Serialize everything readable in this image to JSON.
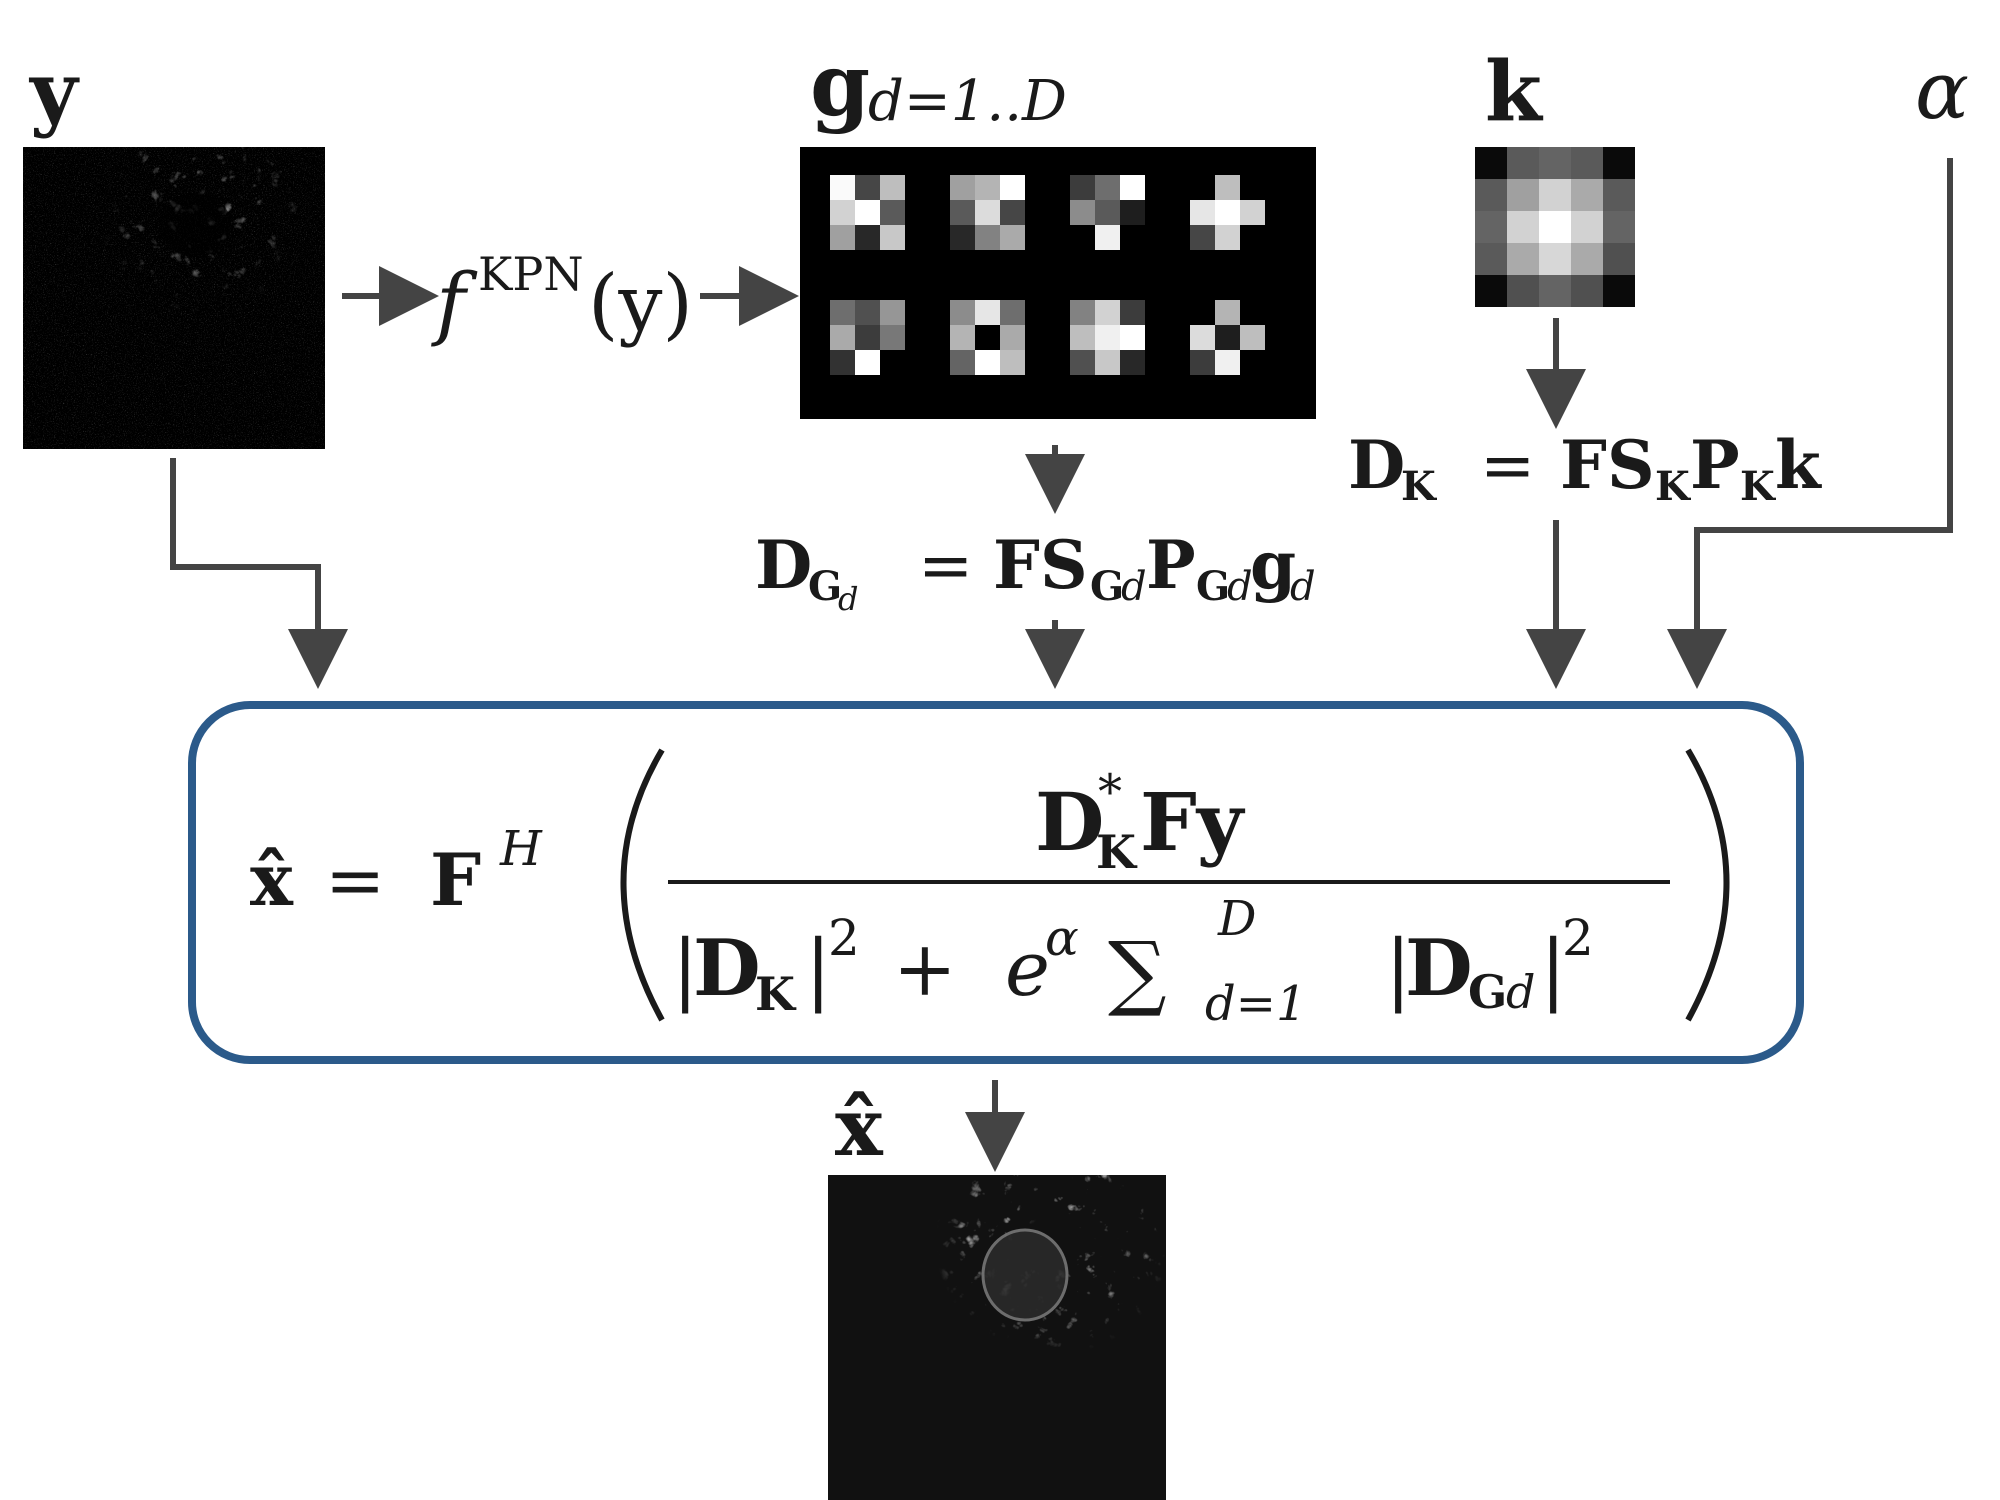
{
  "labels": {
    "y": "y",
    "g_main": "g",
    "g_sub": "d=1..D",
    "k": "k",
    "alpha": "α",
    "f_main": "f",
    "f_sup": "KPN",
    "f_arg": "(y)",
    "xhat_output": "x̂"
  },
  "equations": {
    "dg": {
      "D": "D",
      "D_sub": "G",
      "D_subsub": "d",
      "eq": "=",
      "F": "F",
      "S": "S",
      "S_sub": "G",
      "S_subsub": "d",
      "P": "P",
      "P_sub": "G",
      "P_subsub": "d",
      "g": "g",
      "g_sub": "d"
    },
    "dk": {
      "D": "D",
      "D_sub": "K",
      "eq": "=",
      "F": "F",
      "S": "S",
      "S_sub": "K",
      "P": "P",
      "P_sub": "K",
      "k": "k"
    },
    "main": {
      "lhs": "x̂",
      "eq": "=",
      "F": "F",
      "F_sup": "H",
      "num_D": "D",
      "num_star": "*",
      "num_K": "K",
      "num_rest": "Fy",
      "den_bar1": "|",
      "den_D": "D",
      "den_K": "K",
      "den_bar2": "|",
      "den_sq1": "2",
      "den_plus": "+",
      "den_e": "e",
      "den_alpha": "α",
      "den_sum": "∑",
      "den_sum_top": "D",
      "den_sum_bottom": "d=1",
      "den_bar3": "|",
      "den_D2": "D",
      "den_G": "G",
      "den_d": "d",
      "den_bar4": "|",
      "den_sq2": "2"
    }
  },
  "colors": {
    "arrow": "#444444",
    "box_border": "#2b5a8a",
    "image_bg": "#000000"
  },
  "kernel_grid": {
    "description_free": true,
    "kernels": [
      [
        [
          250,
          70,
          190
        ],
        [
          210,
          255,
          90
        ],
        [
          160,
          40,
          200
        ]
      ],
      [
        [
          160,
          180,
          255
        ],
        [
          90,
          220,
          70
        ],
        [
          40,
          130,
          170
        ]
      ],
      [
        [
          60,
          110,
          255
        ],
        [
          140,
          90,
          30
        ],
        [
          0,
          240,
          0
        ]
      ],
      [
        [
          0,
          190,
          0
        ],
        [
          230,
          255,
          210
        ],
        [
          70,
          210,
          0
        ]
      ],
      [
        [
          110,
          80,
          150
        ],
        [
          170,
          60,
          120
        ],
        [
          50,
          255,
          0
        ]
      ],
      [
        [
          140,
          230,
          110
        ],
        [
          180,
          0,
          170
        ],
        [
          100,
          255,
          190
        ]
      ],
      [
        [
          130,
          210,
          60
        ],
        [
          190,
          240,
          255
        ],
        [
          80,
          200,
          40
        ]
      ],
      [
        [
          0,
          180,
          0
        ],
        [
          220,
          30,
          190
        ],
        [
          60,
          240,
          0
        ]
      ]
    ],
    "psf": [
      [
        10,
        90,
        100,
        90,
        10
      ],
      [
        90,
        160,
        210,
        170,
        90
      ],
      [
        100,
        210,
        255,
        210,
        100
      ],
      [
        90,
        170,
        215,
        170,
        80
      ],
      [
        10,
        80,
        100,
        80,
        10
      ]
    ]
  }
}
